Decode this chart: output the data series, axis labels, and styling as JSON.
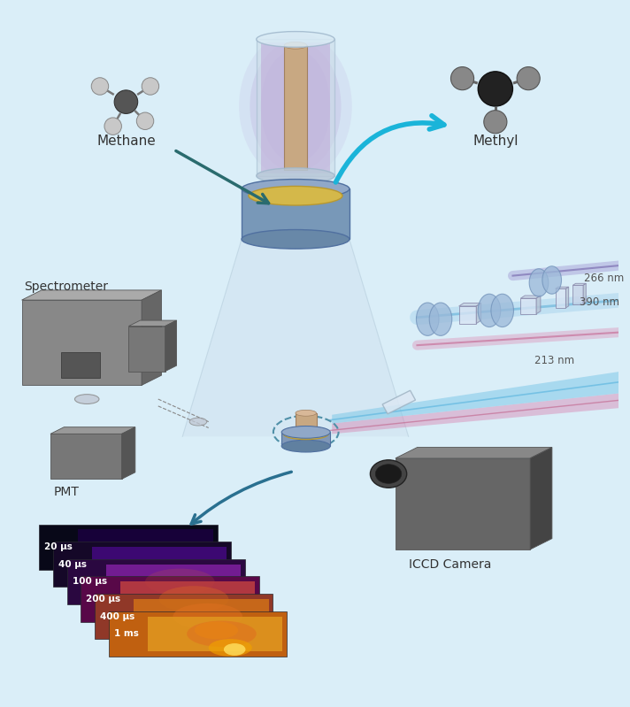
{
  "background_color": "#daeef8",
  "elements": {
    "methane_label": "Methane",
    "methyl_label": "Methyl",
    "spectrometer_label": "Spectrometer",
    "pmt_label": "PMT",
    "iccd_label": "ICCD Camera",
    "wavelengths": [
      "266 nm",
      "390 nm",
      "213 nm"
    ],
    "time_labels": [
      "20 μs",
      "40 μs",
      "100 μs",
      "200 μs",
      "400 μs",
      "1 ms"
    ]
  },
  "colors": {
    "bg": "#daeef8",
    "dark_arrow": "#2a6b6e",
    "cyan_arrow": "#1ab4d9",
    "laser_blue": "#87d4f0",
    "laser_pink": "#e07090",
    "laser_purple": "#9090d0",
    "dbd_cylinder_body": "#c8a882",
    "dbd_cylinder_glass": "#c8d8e8",
    "dbd_plasma": "#c0a0d0",
    "dbd_base": "#c8b868",
    "optics_blue": "#9ab8d8",
    "spectrometer_gray": "#888888",
    "camera_gray": "#666666",
    "molecule_dark": "#333333",
    "molecule_light": "#cccccc",
    "cone_color": "#c8d8e8",
    "frame_dark": "#1a1a2e"
  }
}
